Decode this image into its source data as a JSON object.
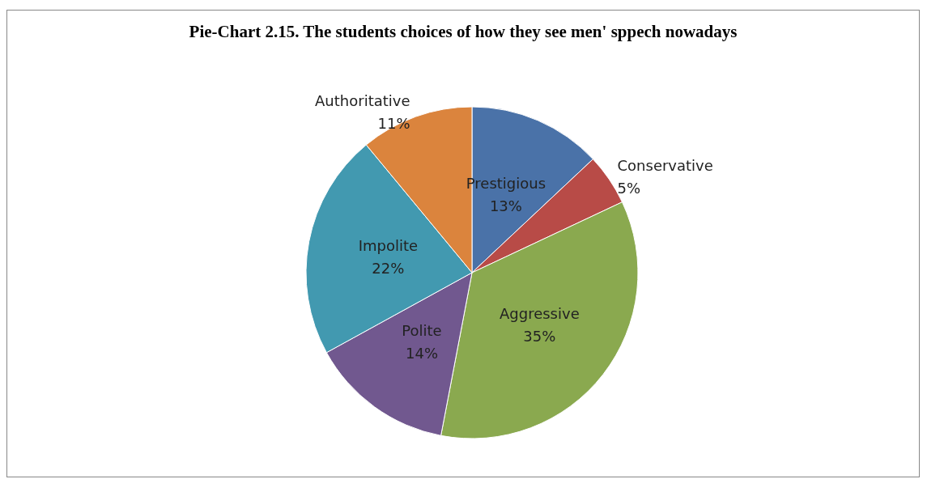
{
  "chart_data": {
    "type": "pie",
    "title": "Pie-Chart 2.15. The students choices of how they see men' sppech nowadays",
    "categories": [
      "Prestigious",
      "Conservative",
      "Aggressive",
      "Polite",
      "Impolite",
      "Authoritative"
    ],
    "values": [
      13,
      5,
      35,
      14,
      22,
      11
    ],
    "value_labels": [
      "13%",
      "5%",
      "35%",
      "14%",
      "22%",
      "11%"
    ],
    "colors": [
      "#4a72a8",
      "#b84b47",
      "#8aa94f",
      "#71588f",
      "#4299b0",
      "#db843d"
    ],
    "legend": false
  }
}
